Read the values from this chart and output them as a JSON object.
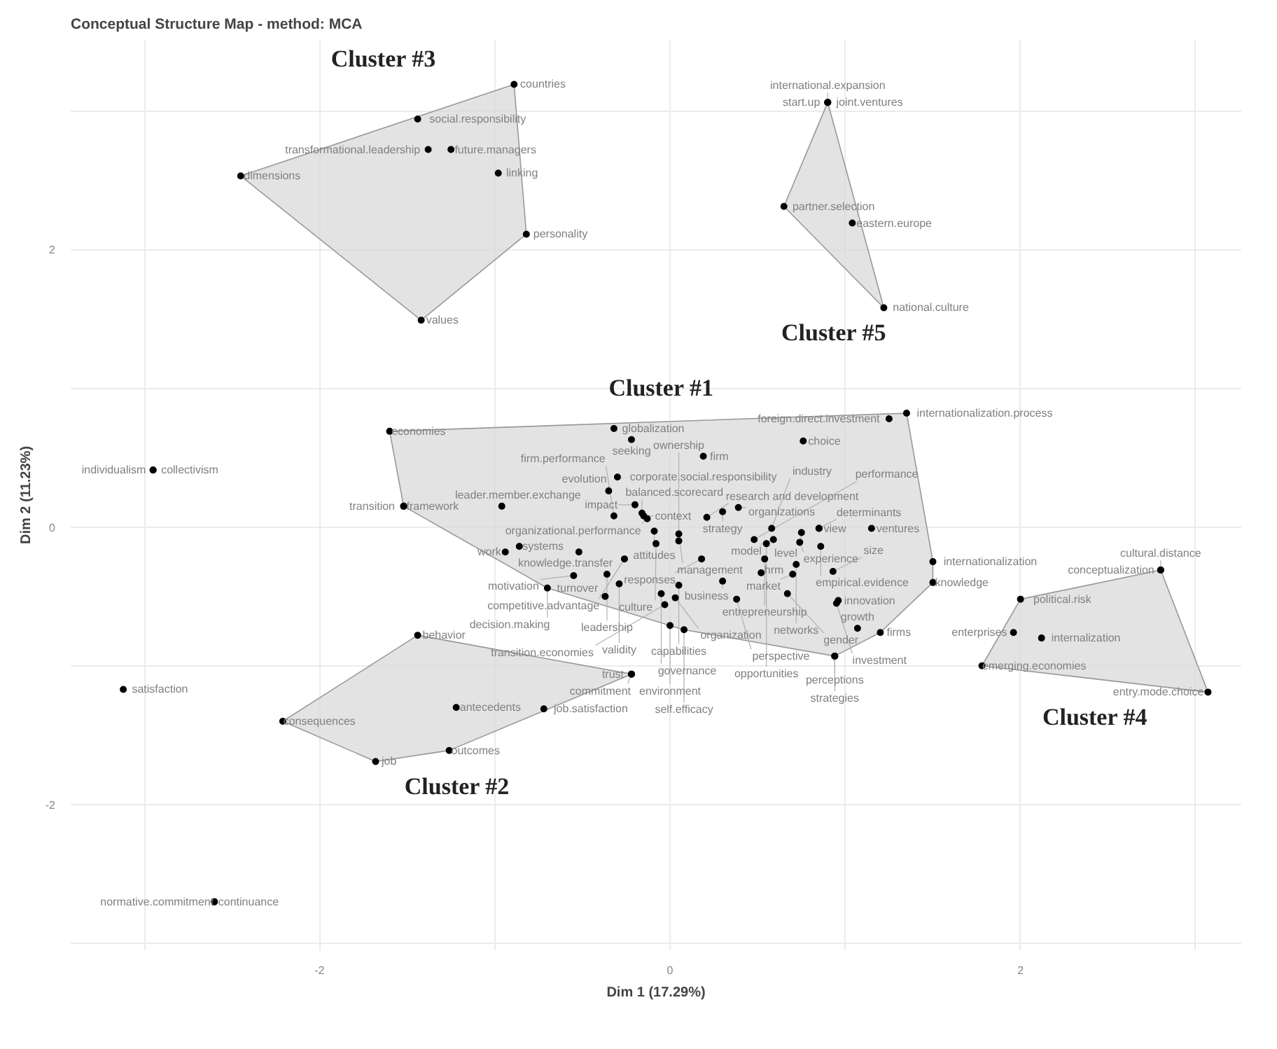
{
  "chart_data": {
    "type": "scatter",
    "title": "Conceptual Structure Map - method: MCA",
    "xlabel": "Dim 1 (17.29%)",
    "ylabel": "Dim 2 (11.23%)",
    "xlim": [
      -3.42,
      3.26
    ],
    "ylim": [
      -3.05,
      3.51
    ],
    "xticks": [
      {
        "value": -3,
        "label": null
      },
      -2,
      {
        "value": -1,
        "label": null
      },
      0,
      {
        "value": 1,
        "label": null
      },
      2,
      {
        "value": 3,
        "label": null
      }
    ],
    "yticks": [
      {
        "value": -3,
        "label": null
      },
      -2,
      {
        "value": -1,
        "label": null
      },
      0,
      {
        "value": 1,
        "label": null
      },
      2,
      {
        "value": 3,
        "label": null
      }
    ],
    "grid": true,
    "marker": "circle",
    "annotations": [
      "Cluster #1",
      "Cluster #2",
      "Cluster #3",
      "Cluster #4",
      "Cluster #5"
    ],
    "series": [
      {
        "color": "#000000",
        "x": [
          -1.6,
          -0.13,
          -0.32,
          -0.22,
          -0.15,
          0.19,
          0.76,
          1.25,
          1.35,
          -0.3,
          -0.16,
          0.21,
          0.3,
          0.39,
          0.59,
          0.85,
          -1.52,
          -1.52,
          -0.96,
          -0.35,
          -0.2,
          0.58,
          0.75,
          0.85,
          1.15,
          -0.09,
          -0.32,
          0.05,
          0.74,
          0.86,
          -0.94,
          -0.86,
          -0.52,
          0.18,
          0.54,
          0.72,
          1.5,
          -0.08,
          -0.26,
          -0.36,
          0.05,
          0.93,
          -0.55,
          -0.7,
          0.3,
          0.7,
          1.5,
          0.52,
          0.96,
          -0.29,
          -0.37,
          0.03,
          -0.05,
          0.0,
          0.38,
          0.67,
          1.2,
          0.95,
          -0.03,
          0.05,
          0.08,
          0.94,
          0.94,
          1.07,
          0.48,
          0.55
        ],
        "values": [
          0.69,
          0.06,
          0.71,
          0.63,
          0.08,
          0.51,
          0.62,
          0.78,
          0.82,
          0.36,
          0.1,
          0.07,
          0.11,
          0.14,
          -0.09,
          -0.01,
          0.15,
          0.15,
          0.15,
          0.26,
          0.16,
          -0.01,
          -0.04,
          -0.01,
          -0.01,
          -0.03,
          0.08,
          -0.05,
          -0.11,
          -0.14,
          -0.18,
          -0.14,
          -0.18,
          -0.23,
          -0.23,
          -0.27,
          -0.25,
          -0.12,
          -0.23,
          -0.34,
          -0.42,
          -0.32,
          -0.35,
          -0.44,
          -0.39,
          -0.34,
          -0.4,
          -0.33,
          -0.53,
          -0.41,
          -0.5,
          -0.51,
          -0.48,
          -0.71,
          -0.52,
          -0.48,
          -0.76,
          -0.55,
          -0.56,
          -0.1,
          -0.74,
          -0.93,
          -0.93,
          -0.73,
          -0.09,
          -0.12
        ],
        "value_labels": [
          "economies",
          "organizational.performance",
          "globalization",
          "seeking",
          "context",
          "firm",
          "choice",
          "foreign.direct.investment",
          "internationalization.process",
          "corporate.social.responsibility",
          "balanced.scorecard",
          "research and development",
          "strategy",
          "organizations",
          "model",
          "view",
          "framework",
          "transition",
          "leader.member.exchange",
          "evolution",
          "impact",
          "industry",
          "level",
          "determinants",
          "ventures",
          "attitudes",
          "firm.performance",
          "management",
          "experience",
          "empirical.evidence",
          "work",
          "systems",
          "knowledge.transfer",
          "responses",
          "entrepreneurship",
          "networks",
          "internationalization",
          "culture",
          "competitive.advantage",
          "leadership",
          "capabilities",
          "size",
          "motivation",
          "decision.making",
          "business",
          "market",
          "knowledge",
          "hrm",
          "innovation",
          "validity",
          "turnover",
          "organization",
          "governance",
          "environment",
          "perspective",
          "gender",
          "firms",
          "investment",
          "transition.economies",
          "ownership",
          "self.efficacy",
          "perceptions",
          "strategies",
          "growth",
          "performance",
          "opportunities"
        ]
      },
      {
        "color": "#000000",
        "x": [
          -1.44,
          -2.21,
          -1.68,
          -1.26,
          -0.72,
          -1.22,
          -0.22,
          -0.22
        ],
        "values": [
          -0.78,
          -1.4,
          -1.69,
          -1.61,
          -1.31,
          -1.3,
          -1.06,
          -1.06
        ],
        "value_labels": [
          "behavior",
          "consequences",
          "job",
          "outcomes",
          "job.satisfaction",
          "antecedents",
          "trust",
          "commitment"
        ]
      },
      {
        "color": "#000000",
        "x": [
          -0.89,
          -1.44,
          -1.25,
          -1.38,
          -0.98,
          -2.45,
          -0.82,
          -1.42
        ],
        "values": [
          3.19,
          2.94,
          2.72,
          2.72,
          2.55,
          2.53,
          2.11,
          1.49
        ],
        "value_labels": [
          "countries",
          "social.responsibility",
          "future.managers",
          "transformational.leadership",
          "linking",
          "dimensions",
          "personality",
          "values"
        ]
      },
      {
        "color": "#000000",
        "x": [
          2.8,
          2.8,
          2.0,
          1.96,
          2.12,
          1.78,
          3.07
        ],
        "values": [
          -0.31,
          -0.31,
          -0.52,
          -0.76,
          -0.8,
          -1.0,
          -1.19
        ],
        "value_labels": [
          "conceptualization",
          "cultural.distance",
          "political.risk",
          "enterprises",
          "internalization",
          "emerging.economies",
          "entry.mode.choice"
        ]
      },
      {
        "color": "#000000",
        "x": [
          0.9,
          0.9,
          0.9,
          0.65,
          1.04,
          1.22
        ],
        "values": [
          3.06,
          3.06,
          3.06,
          2.31,
          2.19,
          1.58
        ],
        "value_labels": [
          "joint.ventures",
          "start.up",
          "international.expansion",
          "partner.selection",
          "eastern.europe",
          "national.culture"
        ]
      },
      {
        "color": "#000000",
        "x": [
          -2.95,
          -2.95
        ],
        "values": [
          0.41,
          0.41
        ],
        "value_labels": [
          "collectivism",
          "individualism"
        ]
      },
      {
        "color": "#000000",
        "x": [
          -3.12
        ],
        "values": [
          -1.17
        ],
        "value_labels": [
          "satisfaction"
        ]
      },
      {
        "color": "#000000",
        "x": [
          -2.6,
          -2.6
        ],
        "values": [
          -2.7,
          -2.7
        ],
        "value_labels": [
          "continuance",
          "normative.commitment"
        ]
      }
    ]
  }
}
